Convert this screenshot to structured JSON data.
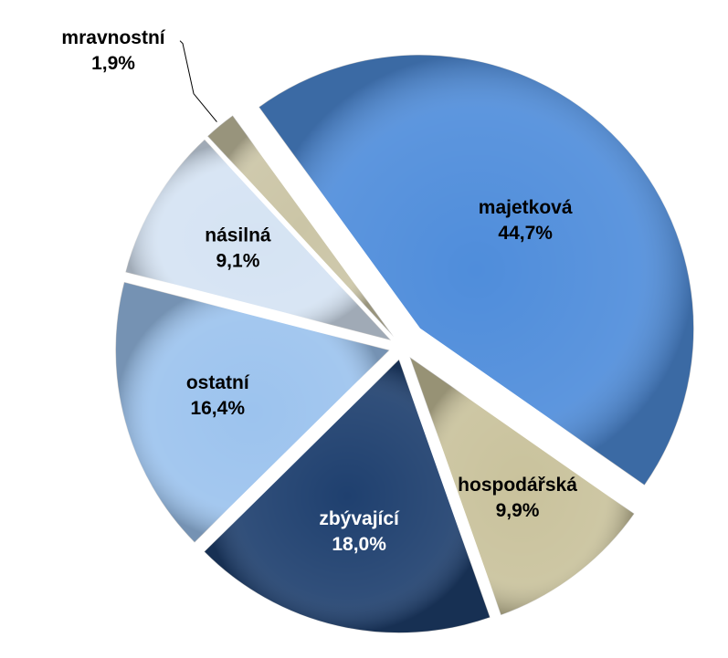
{
  "chart_data": {
    "type": "pie",
    "categories": [
      "majetková",
      "hospodářská",
      "zbývající",
      "ostatní",
      "násilná",
      "mravnostní"
    ],
    "values": [
      44.7,
      9.9,
      18.0,
      16.4,
      9.1,
      1.9
    ],
    "value_labels": [
      "44,7%",
      "9,9%",
      "18,0%",
      "16,4%",
      "9,1%",
      "1,9%"
    ],
    "colors": [
      "#4f8ddb",
      "#c9c29c",
      "#1f406f",
      "#9cc3ee",
      "#d5e3f3",
      "#cbc5a6"
    ]
  }
}
